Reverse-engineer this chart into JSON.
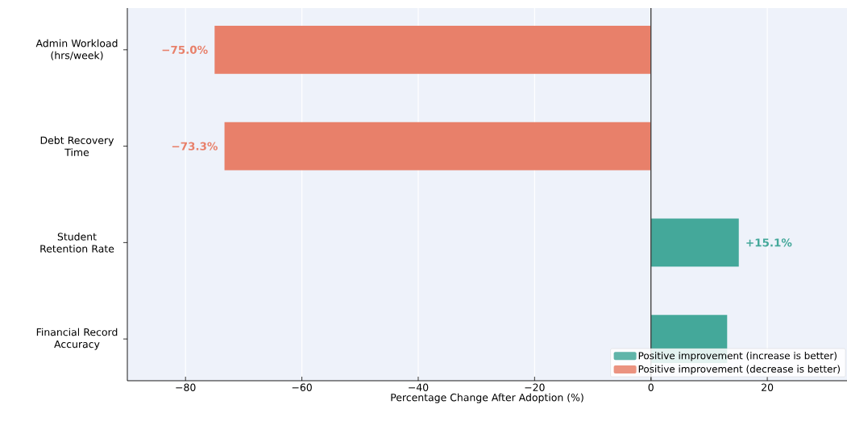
{
  "chart_data": {
    "type": "bar",
    "orientation": "horizontal",
    "xlabel": "Percentage Change After Adoption (%)",
    "categories": [
      "Admin Workload (hrs/week)",
      "Debt Recovery Time",
      "Student Retention Rate",
      "Financial Record Accuracy"
    ],
    "series": [
      {
        "name": "Positive improvement (increase is better)",
        "color": "#44a89a",
        "values": [
          null,
          null,
          15.1,
          13.1
        ],
        "value_labels": [
          null,
          null,
          "+15.1%",
          null
        ]
      },
      {
        "name": "Positive improvement (decrease is better)",
        "color": "#e8806a",
        "values": [
          -75.0,
          -73.3,
          null,
          null
        ],
        "value_labels": [
          "−75.0%",
          "−73.3%",
          null,
          null
        ]
      }
    ],
    "xlim": [
      -90,
      33.7
    ],
    "xticks": [
      {
        "value": -80,
        "label": "−80"
      },
      {
        "value": -60,
        "label": "−60"
      },
      {
        "value": -40,
        "label": "−40"
      },
      {
        "value": -20,
        "label": "−20"
      },
      0,
      20
    ],
    "ref_lines": [
      {
        "axis": "x",
        "value": 0,
        "color": "#444444"
      }
    ],
    "grid": "x",
    "legend": "bottom right"
  }
}
